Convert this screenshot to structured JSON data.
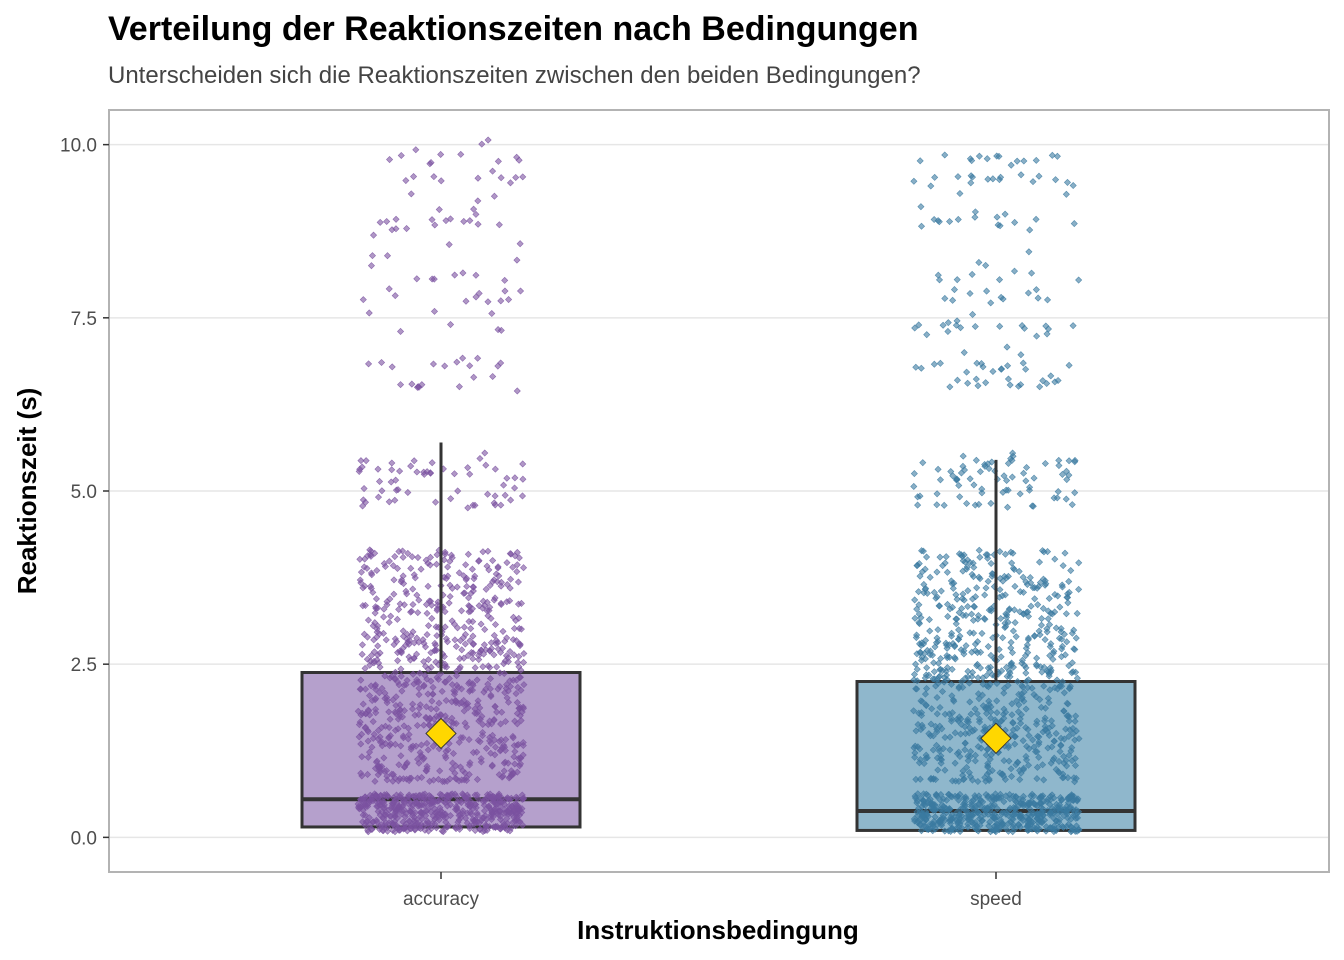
{
  "chart_data": {
    "type": "boxplot",
    "title": "Verteilung der Reaktionszeiten nach Bedingungen",
    "subtitle": "Unterscheiden sich die Reaktionszeiten zwischen den beiden Bedingungen?",
    "xlabel": "Instruktionsbedingung",
    "ylabel": "Reaktionszeit (s)",
    "categories": [
      "accuracy",
      "speed"
    ],
    "ylim": [
      -0.5,
      10.5
    ],
    "yticks": [
      0.0,
      2.5,
      5.0,
      7.5,
      10.0
    ],
    "ytick_labels": [
      "0.0",
      "2.5",
      "5.0",
      "7.5",
      "10.0"
    ],
    "grid": "horizontal",
    "legend": "none",
    "series": [
      {
        "category": "accuracy",
        "box_color": "#b5a0cc",
        "point_color": "#7b52a0",
        "whisker_low": 0.1,
        "q1": 0.15,
        "median": 0.55,
        "q3": 2.38,
        "whisker_high": 5.7,
        "mean": 1.5,
        "point_range": [
          0.1,
          10.1
        ]
      },
      {
        "category": "speed",
        "box_color": "#8fb7cc",
        "point_color": "#3b7aa0",
        "whisker_low": 0.1,
        "q1": 0.1,
        "median": 0.38,
        "q3": 2.25,
        "whisker_high": 5.45,
        "mean": 1.43,
        "point_range": [
          0.1,
          9.9
        ]
      }
    ],
    "mean_marker_color": "#ffd700"
  }
}
